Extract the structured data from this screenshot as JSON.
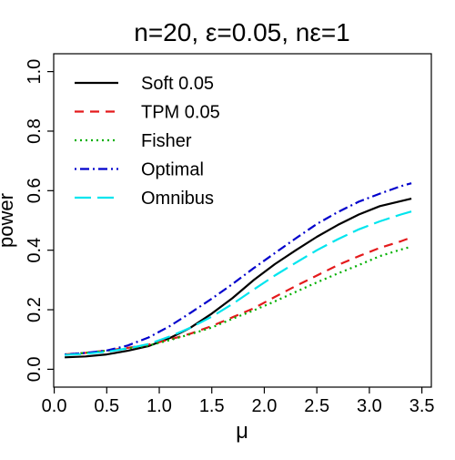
{
  "chart_data": {
    "type": "line",
    "title": "n=20, ε=0.05, nε=1",
    "xlabel": "μ",
    "ylabel": "power",
    "xlim": [
      0,
      3.5
    ],
    "ylim": [
      0,
      1.0
    ],
    "xticks": [
      {
        "value": 0.0,
        "label": "0.0"
      },
      {
        "value": 0.5,
        "label": "0.5"
      },
      {
        "value": 1.0,
        "label": "1.0"
      },
      {
        "value": 1.5,
        "label": "1.5"
      },
      {
        "value": 2.0,
        "label": "2.0"
      },
      {
        "value": 2.5,
        "label": "2.5"
      },
      {
        "value": 3.0,
        "label": "3.0"
      },
      {
        "value": 3.5,
        "label": "3.5"
      }
    ],
    "yticks": [
      {
        "value": 0.0,
        "label": "0.0"
      },
      {
        "value": 0.2,
        "label": "0.2"
      },
      {
        "value": 0.4,
        "label": "0.4"
      },
      {
        "value": 0.6,
        "label": "0.6"
      },
      {
        "value": 0.8,
        "label": "0.8"
      },
      {
        "value": 1.0,
        "label": "1.0"
      }
    ],
    "grid": false,
    "legend_position": "top-left",
    "x": [
      0.1,
      0.3,
      0.5,
      0.7,
      0.9,
      1.1,
      1.3,
      1.5,
      1.7,
      1.9,
      2.1,
      2.3,
      2.5,
      2.7,
      2.9,
      3.1,
      3.3,
      3.4
    ],
    "series": [
      {
        "name": "Soft 0.05",
        "color": "#000000",
        "dash": "solid",
        "values": [
          0.04,
          0.043,
          0.05,
          0.062,
          0.078,
          0.105,
          0.14,
          0.187,
          0.24,
          0.3,
          0.353,
          0.4,
          0.445,
          0.485,
          0.52,
          0.548,
          0.565,
          0.573
        ]
      },
      {
        "name": "TPM 0.05",
        "color": "#e41a1c",
        "dash": "dashed",
        "values": [
          0.05,
          0.055,
          0.063,
          0.072,
          0.083,
          0.1,
          0.12,
          0.145,
          0.175,
          0.205,
          0.243,
          0.28,
          0.315,
          0.35,
          0.38,
          0.408,
          0.43,
          0.443
        ]
      },
      {
        "name": "Fisher",
        "color": "#00b000",
        "dash": "dotted",
        "values": [
          0.05,
          0.055,
          0.062,
          0.07,
          0.08,
          0.098,
          0.118,
          0.14,
          0.17,
          0.198,
          0.228,
          0.26,
          0.292,
          0.322,
          0.35,
          0.38,
          0.402,
          0.412
        ]
      },
      {
        "name": "Optimal",
        "color": "#0000cc",
        "dash": "dotdash",
        "values": [
          0.05,
          0.055,
          0.063,
          0.08,
          0.107,
          0.145,
          0.19,
          0.237,
          0.287,
          0.34,
          0.39,
          0.44,
          0.488,
          0.528,
          0.563,
          0.59,
          0.615,
          0.625
        ]
      },
      {
        "name": "Omnibus",
        "color": "#00e5ee",
        "dash": "longdash",
        "values": [
          0.048,
          0.052,
          0.059,
          0.07,
          0.085,
          0.11,
          0.14,
          0.177,
          0.22,
          0.268,
          0.315,
          0.358,
          0.4,
          0.437,
          0.47,
          0.497,
          0.52,
          0.53
        ]
      }
    ]
  }
}
